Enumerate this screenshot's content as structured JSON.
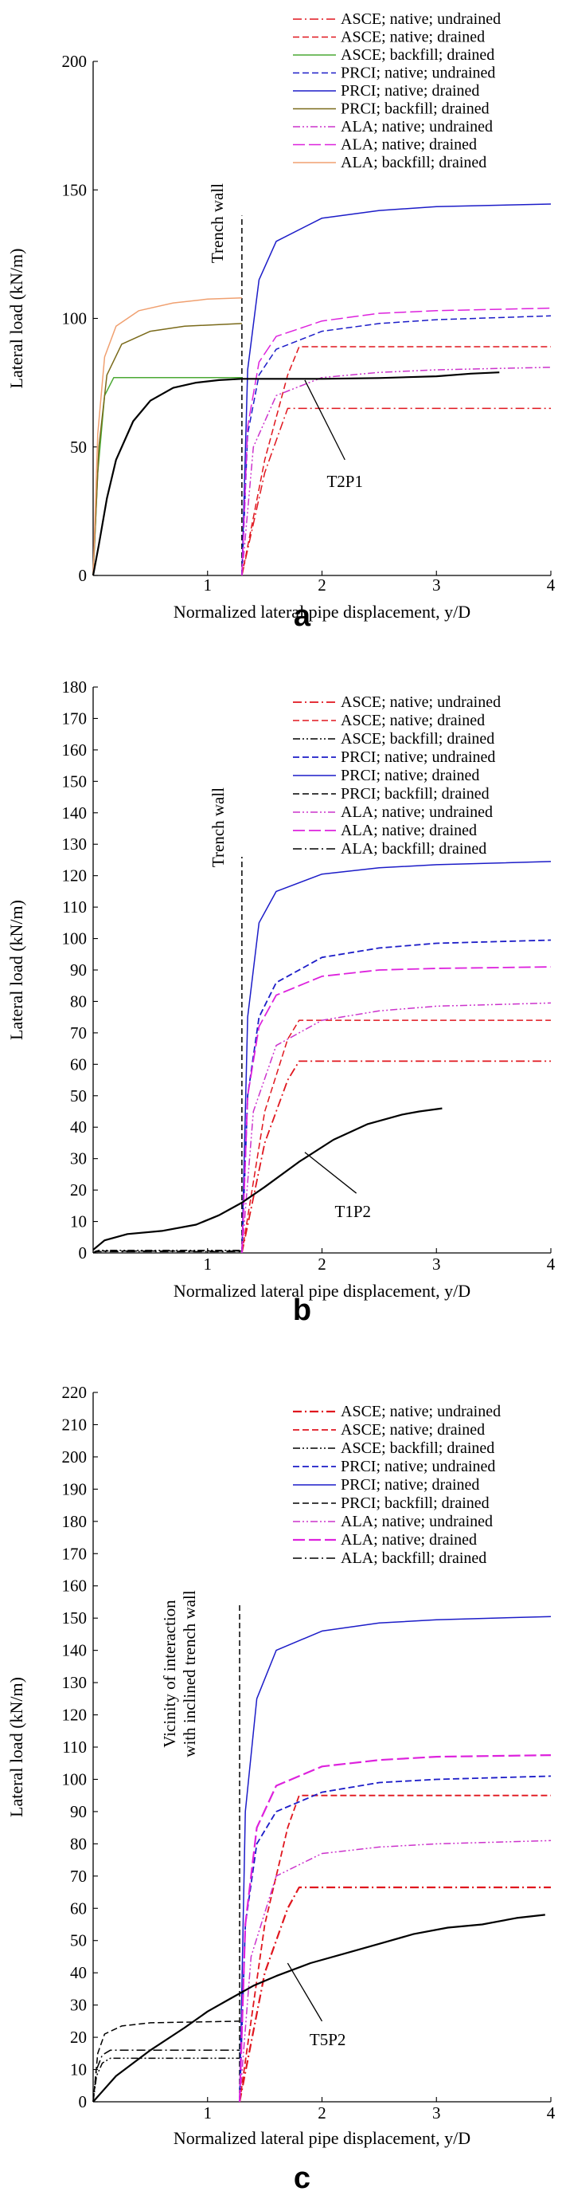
{
  "chart_data": [
    {
      "type": "line",
      "panel": "a",
      "xlabel": "Normalized lateral pipe displacement, y/D",
      "ylabel": "Lateral load (kN/m)",
      "xlim": [
        0,
        4
      ],
      "ylim": [
        0,
        200
      ],
      "xticks": [
        1,
        2,
        3,
        4
      ],
      "yticks": [
        0,
        50,
        100,
        150,
        200
      ],
      "trench_wall": {
        "x": 1.3,
        "label": "Trench wall"
      },
      "test_label": "T2P1",
      "series": [
        {
          "name": "ASCE; native; undrained",
          "color": "#e0161e",
          "dash": "dashdot",
          "x": [
            1.3,
            1.5,
            1.7,
            4.0
          ],
          "y": [
            0,
            40,
            65,
            65
          ]
        },
        {
          "name": "ASCE; native; drained",
          "color": "#e0161e",
          "dash": "dashed",
          "x": [
            1.3,
            1.5,
            1.7,
            1.8,
            4.0
          ],
          "y": [
            0,
            45,
            78,
            89,
            89
          ]
        },
        {
          "name": "ASCE; backfill; drained",
          "color": "#4aa833",
          "dash": "solid",
          "x": [
            0,
            0.04,
            0.1,
            0.18,
            1.3
          ],
          "y": [
            0,
            40,
            70,
            77,
            77
          ]
        },
        {
          "name": "PRCI; native; undrained",
          "color": "#1c1cc8",
          "dash": "dashed",
          "x": [
            1.3,
            1.35,
            1.45,
            1.6,
            2.0,
            2.5,
            3.0,
            4.0
          ],
          "y": [
            0,
            55,
            78,
            88,
            95,
            98,
            99.5,
            101
          ]
        },
        {
          "name": "PRCI; native; drained",
          "color": "#1c1cc8",
          "dash": "solid",
          "x": [
            1.3,
            1.35,
            1.45,
            1.6,
            2.0,
            2.5,
            3.0,
            4.0
          ],
          "y": [
            0,
            80,
            115,
            130,
            139,
            142,
            143.5,
            144.5
          ]
        },
        {
          "name": "PRCI; backfill; drained",
          "color": "#7a6a1a",
          "dash": "solid",
          "x": [
            0,
            0.05,
            0.12,
            0.25,
            0.5,
            0.8,
            1.3
          ],
          "y": [
            0,
            50,
            78,
            90,
            95,
            97,
            98
          ]
        },
        {
          "name": "ALA; native; undrained",
          "color": "#cc33cc",
          "dash": "dashdotdot",
          "x": [
            1.3,
            1.4,
            1.6,
            2.0,
            2.5,
            3.0,
            4.0
          ],
          "y": [
            0,
            50,
            70,
            77,
            79,
            80,
            81
          ]
        },
        {
          "name": "ALA; native; drained",
          "color": "#dd22dd",
          "dash": "longdash",
          "x": [
            1.3,
            1.35,
            1.45,
            1.6,
            2.0,
            2.5,
            3.0,
            4.0
          ],
          "y": [
            0,
            58,
            83,
            93,
            99,
            102,
            103,
            104
          ]
        },
        {
          "name": "ALA; backfill; drained",
          "color": "#f0a070",
          "dash": "solid",
          "x": [
            0,
            0.04,
            0.1,
            0.2,
            0.4,
            0.7,
            1.0,
            1.3
          ],
          "y": [
            0,
            55,
            85,
            97,
            103,
            106,
            107.5,
            108
          ]
        },
        {
          "name": "T2P1",
          "color": "#000000",
          "dash": "solid",
          "width": 2.2,
          "x": [
            0,
            0.05,
            0.12,
            0.2,
            0.35,
            0.5,
            0.7,
            0.9,
            1.1,
            1.3,
            1.6,
            2.0,
            2.5,
            3.0,
            3.3,
            3.55
          ],
          "y": [
            0,
            12,
            30,
            45,
            60,
            68,
            73,
            75,
            76,
            76.5,
            76.5,
            76.5,
            76.8,
            77.5,
            78.5,
            79
          ]
        }
      ]
    },
    {
      "type": "line",
      "panel": "b",
      "xlabel": "Normalized lateral pipe displacement, y/D",
      "ylabel": "Lateral load (kN/m)",
      "xlim": [
        0,
        4
      ],
      "ylim": [
        0,
        180
      ],
      "xticks": [
        1,
        2,
        3,
        4
      ],
      "yticks": [
        0,
        10,
        20,
        30,
        40,
        50,
        60,
        70,
        80,
        90,
        100,
        110,
        120,
        130,
        140,
        150,
        160,
        170,
        180
      ],
      "trench_wall": {
        "x": 1.3,
        "label": "Trench wall"
      },
      "test_label": "T1P2",
      "series": [
        {
          "name": "ASCE; native; undrained",
          "color": "#e0161e",
          "dash": "dashdot",
          "width": 1.8,
          "x": [
            1.3,
            1.5,
            1.7,
            1.8,
            4.0
          ],
          "y": [
            0,
            35,
            55,
            61,
            61
          ]
        },
        {
          "name": "ASCE; native; drained",
          "color": "#e0161e",
          "dash": "dashed",
          "x": [
            1.3,
            1.5,
            1.7,
            1.8,
            4.0
          ],
          "y": [
            0,
            45,
            68,
            74,
            74
          ]
        },
        {
          "name": "ASCE; backfill; drained",
          "color": "#000000",
          "dash": "dashdotdot",
          "x": [
            0,
            0.02,
            0.05,
            1.3
          ],
          "y": [
            0,
            0.5,
            0.8,
            0.8
          ]
        },
        {
          "name": "PRCI; native; undrained",
          "color": "#1c1cc8",
          "dash": "dashed",
          "width": 1.8,
          "x": [
            1.3,
            1.35,
            1.45,
            1.6,
            2.0,
            2.5,
            3.0,
            4.0
          ],
          "y": [
            0,
            50,
            75,
            86,
            94,
            97,
            98.5,
            99.5
          ]
        },
        {
          "name": "PRCI; native; drained",
          "color": "#1c1cc8",
          "dash": "solid",
          "x": [
            1.3,
            1.35,
            1.45,
            1.6,
            2.0,
            2.5,
            3.0,
            4.0
          ],
          "y": [
            0,
            75,
            105,
            115,
            120.5,
            122.5,
            123.5,
            124.5
          ]
        },
        {
          "name": "PRCI; backfill; drained",
          "color": "#000000",
          "dash": "dashed",
          "x": [
            0,
            0.03,
            1.3
          ],
          "y": [
            0,
            0.6,
            0.6
          ]
        },
        {
          "name": "ALA; native; undrained",
          "color": "#cc33cc",
          "dash": "dashdotdot",
          "x": [
            1.3,
            1.4,
            1.6,
            2.0,
            2.5,
            3.0,
            4.0
          ],
          "y": [
            0,
            45,
            66,
            74,
            77,
            78.5,
            79.5
          ]
        },
        {
          "name": "ALA; native; drained",
          "color": "#dd22dd",
          "dash": "longdash",
          "width": 1.8,
          "x": [
            1.3,
            1.35,
            1.45,
            1.6,
            2.0,
            2.5,
            3.0,
            4.0
          ],
          "y": [
            0,
            50,
            72,
            82,
            88,
            90,
            90.5,
            91
          ]
        },
        {
          "name": "ALA; backfill; drained",
          "color": "#000000",
          "dash": "dashdot",
          "x": [
            0,
            0.03,
            1.3
          ],
          "y": [
            0,
            0.4,
            0.4
          ]
        },
        {
          "name": "T1P2",
          "color": "#000000",
          "dash": "solid",
          "width": 2.2,
          "x": [
            0,
            0.1,
            0.3,
            0.6,
            0.9,
            1.1,
            1.3,
            1.5,
            1.8,
            2.1,
            2.4,
            2.7,
            2.85,
            3.05
          ],
          "y": [
            1,
            4,
            6,
            7,
            9,
            12,
            16,
            21,
            29,
            36,
            41,
            44,
            45,
            46
          ]
        }
      ]
    },
    {
      "type": "line",
      "panel": "c",
      "xlabel": "Normalized lateral pipe displacement, y/D",
      "ylabel": "Lateral load (kN/m)",
      "xlim": [
        0,
        4
      ],
      "ylim": [
        0,
        220
      ],
      "xticks": [
        1,
        2,
        3,
        4
      ],
      "yticks": [
        0,
        10,
        20,
        30,
        40,
        50,
        60,
        70,
        80,
        90,
        100,
        110,
        120,
        130,
        140,
        150,
        160,
        170,
        180,
        190,
        200,
        210,
        220
      ],
      "trench_wall": {
        "x": 1.28,
        "label_line1": "Vicinity of interaction",
        "label_line2": "with inclined trench wall"
      },
      "test_label": "T5P2",
      "series": [
        {
          "name": "ASCE; native; undrained",
          "color": "#e0161e",
          "dash": "dashdot",
          "width": 2.2,
          "x": [
            1.28,
            1.5,
            1.7,
            1.8,
            4.0
          ],
          "y": [
            0,
            40,
            60,
            66.5,
            66.5
          ]
        },
        {
          "name": "ASCE; native; drained",
          "color": "#e0161e",
          "dash": "dashed",
          "width": 1.8,
          "x": [
            1.28,
            1.5,
            1.7,
            1.8,
            4.0
          ],
          "y": [
            0,
            55,
            85,
            95,
            95
          ]
        },
        {
          "name": "ASCE; backfill; drained",
          "color": "#000000",
          "dash": "dashdotdot",
          "x": [
            0,
            0.03,
            0.08,
            0.15,
            1.28
          ],
          "y": [
            0,
            8,
            12,
            13.5,
            13.5
          ]
        },
        {
          "name": "PRCI; native; undrained",
          "color": "#1c1cc8",
          "dash": "dashed",
          "width": 1.8,
          "x": [
            1.28,
            1.33,
            1.43,
            1.6,
            2.0,
            2.5,
            3.0,
            4.0
          ],
          "y": [
            0,
            55,
            80,
            90,
            96,
            99,
            100,
            101
          ]
        },
        {
          "name": "PRCI; native; drained",
          "color": "#1c1cc8",
          "dash": "solid",
          "x": [
            1.28,
            1.33,
            1.43,
            1.6,
            2.0,
            2.5,
            3.0,
            4.0
          ],
          "y": [
            0,
            90,
            125,
            140,
            146,
            148.5,
            149.5,
            150.5
          ]
        },
        {
          "name": "PRCI; backfill; drained",
          "color": "#000000",
          "dash": "dashed",
          "x": [
            0,
            0.04,
            0.1,
            0.25,
            0.5,
            1.28
          ],
          "y": [
            0,
            15,
            21,
            23.5,
            24.5,
            25
          ]
        },
        {
          "name": "ALA; native; undrained",
          "color": "#cc33cc",
          "dash": "dashdotdot",
          "x": [
            1.28,
            1.38,
            1.6,
            2.0,
            2.5,
            3.0,
            4.0
          ],
          "y": [
            0,
            45,
            70,
            77,
            79,
            80,
            81
          ]
        },
        {
          "name": "ALA; native; drained",
          "color": "#dd22dd",
          "dash": "longdash",
          "width": 2.2,
          "x": [
            1.28,
            1.33,
            1.43,
            1.6,
            2.0,
            2.5,
            3.0,
            4.0
          ],
          "y": [
            0,
            55,
            85,
            98,
            104,
            106,
            107,
            107.5
          ]
        },
        {
          "name": "ALA; backfill; drained",
          "color": "#000000",
          "dash": "dashdot",
          "x": [
            0,
            0.03,
            0.08,
            0.15,
            1.28
          ],
          "y": [
            0,
            10,
            14.5,
            16,
            16
          ]
        },
        {
          "name": "T5P2",
          "color": "#000000",
          "dash": "solid",
          "width": 2.2,
          "x": [
            0,
            0.2,
            0.5,
            0.8,
            1.0,
            1.2,
            1.4,
            1.6,
            1.9,
            2.2,
            2.5,
            2.8,
            3.1,
            3.4,
            3.7,
            3.95
          ],
          "y": [
            0,
            8,
            16,
            23,
            28,
            32,
            36,
            39,
            43,
            46,
            49,
            52,
            54,
            55,
            57,
            58
          ]
        }
      ]
    }
  ]
}
